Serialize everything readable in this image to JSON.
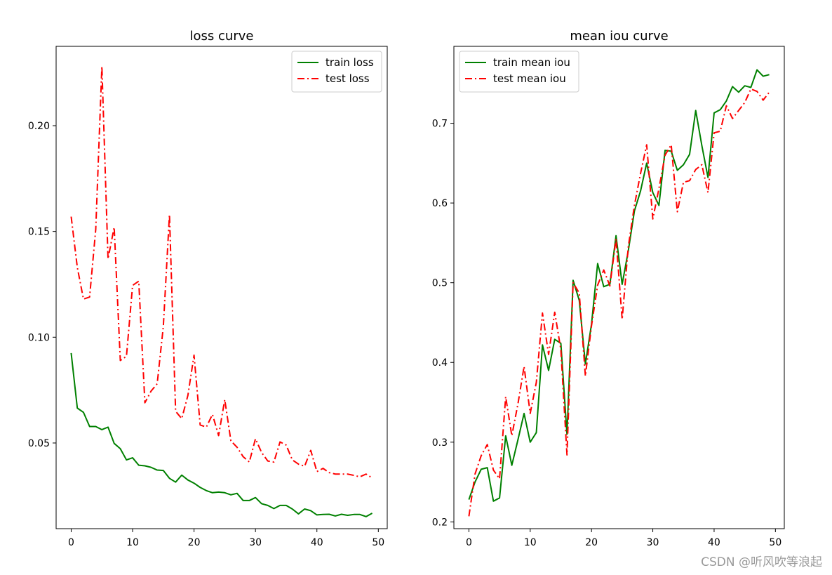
{
  "watermark": "CSDN @听风吹等浪起",
  "colors": {
    "train": "#008000",
    "test": "#ff0000",
    "axis": "#000000"
  },
  "chart_data": [
    {
      "type": "line",
      "title": "loss curve",
      "xlim": [
        -2.45,
        51.45
      ],
      "ylim": [
        0.0095,
        0.2375
      ],
      "xticks": [
        0,
        10,
        20,
        30,
        40,
        50
      ],
      "yticks": [
        0.05,
        0.1,
        0.15,
        0.2
      ],
      "ytick_labels": [
        "0.05",
        "0.10",
        "0.15",
        "0.20"
      ],
      "legend_position": "upper right",
      "grid": false,
      "series": [
        {
          "name": "train loss",
          "style": "solid",
          "color": "#008000",
          "x": [
            0,
            1,
            2,
            3,
            4,
            5,
            6,
            7,
            8,
            9,
            10,
            11,
            12,
            13,
            14,
            15,
            16,
            17,
            18,
            19,
            20,
            21,
            22,
            23,
            24,
            25,
            26,
            27,
            28,
            29,
            30,
            31,
            32,
            33,
            34,
            35,
            36,
            37,
            38,
            39,
            40,
            41,
            42,
            43,
            44,
            45,
            46,
            47,
            48,
            49
          ],
          "values": [
            0.0925,
            0.0665,
            0.0645,
            0.0578,
            0.0578,
            0.0563,
            0.0575,
            0.0498,
            0.0473,
            0.042,
            0.043,
            0.0395,
            0.0392,
            0.0385,
            0.0372,
            0.037,
            0.0333,
            0.0315,
            0.0348,
            0.0325,
            0.031,
            0.029,
            0.0275,
            0.0265,
            0.0268,
            0.0265,
            0.0255,
            0.0262,
            0.0228,
            0.0228,
            0.0242,
            0.0213,
            0.0205,
            0.019,
            0.0205,
            0.0205,
            0.0188,
            0.0165,
            0.0188,
            0.018,
            0.016,
            0.0162,
            0.0163,
            0.0155,
            0.0163,
            0.0158,
            0.0162,
            0.0162,
            0.0152,
            0.0168
          ]
        },
        {
          "name": "test loss",
          "style": "dashdot",
          "color": "#ff0000",
          "x": [
            0,
            1,
            2,
            3,
            4,
            5,
            6,
            7,
            8,
            9,
            10,
            11,
            12,
            13,
            14,
            15,
            16,
            17,
            18,
            19,
            20,
            21,
            22,
            23,
            24,
            25,
            26,
            27,
            28,
            29,
            30,
            31,
            32,
            33,
            34,
            35,
            36,
            37,
            38,
            39,
            40,
            41,
            42,
            43,
            44,
            45,
            46,
            47,
            48,
            49
          ],
          "values": [
            0.157,
            0.133,
            0.118,
            0.119,
            0.151,
            0.228,
            0.137,
            0.152,
            0.089,
            0.091,
            0.1245,
            0.1265,
            0.069,
            0.0745,
            0.078,
            0.105,
            0.158,
            0.065,
            0.0615,
            0.0725,
            0.0915,
            0.0585,
            0.0575,
            0.0635,
            0.0535,
            0.0705,
            0.051,
            0.048,
            0.0435,
            0.041,
            0.052,
            0.0455,
            0.0415,
            0.041,
            0.0505,
            0.049,
            0.042,
            0.04,
            0.039,
            0.0465,
            0.0365,
            0.038,
            0.036,
            0.0353,
            0.0353,
            0.0353,
            0.0347,
            0.034,
            0.0353,
            0.0335
          ]
        }
      ]
    },
    {
      "type": "line",
      "title": "mean iou curve",
      "xlim": [
        -2.45,
        51.45
      ],
      "ylim": [
        0.1915,
        0.7965
      ],
      "xticks": [
        0,
        10,
        20,
        30,
        40,
        50
      ],
      "yticks": [
        0.2,
        0.3,
        0.4,
        0.5,
        0.6,
        0.7
      ],
      "ytick_labels": [
        "0.2",
        "0.3",
        "0.4",
        "0.5",
        "0.6",
        "0.7"
      ],
      "legend_position": "upper left",
      "grid": false,
      "series": [
        {
          "name": "train mean iou",
          "style": "solid",
          "color": "#008000",
          "x": [
            0,
            1,
            2,
            3,
            4,
            5,
            6,
            7,
            8,
            9,
            10,
            11,
            12,
            13,
            14,
            15,
            16,
            17,
            18,
            19,
            20,
            21,
            22,
            23,
            24,
            25,
            26,
            27,
            28,
            29,
            30,
            31,
            32,
            33,
            34,
            35,
            36,
            37,
            38,
            39,
            40,
            41,
            42,
            43,
            44,
            45,
            46,
            47,
            48,
            49
          ],
          "values": [
            0.228,
            0.25,
            0.266,
            0.268,
            0.226,
            0.23,
            0.308,
            0.271,
            0.303,
            0.336,
            0.3,
            0.312,
            0.422,
            0.39,
            0.429,
            0.424,
            0.31,
            0.503,
            0.478,
            0.398,
            0.448,
            0.524,
            0.495,
            0.498,
            0.559,
            0.498,
            0.54,
            0.59,
            0.615,
            0.65,
            0.613,
            0.597,
            0.666,
            0.665,
            0.641,
            0.648,
            0.661,
            0.716,
            0.672,
            0.632,
            0.713,
            0.717,
            0.728,
            0.746,
            0.739,
            0.747,
            0.745,
            0.767,
            0.759,
            0.761
          ]
        },
        {
          "name": "test mean iou",
          "style": "dashdot",
          "color": "#ff0000",
          "x": [
            0,
            1,
            2,
            3,
            4,
            5,
            6,
            7,
            8,
            9,
            10,
            11,
            12,
            13,
            14,
            15,
            16,
            17,
            18,
            19,
            20,
            21,
            22,
            23,
            24,
            25,
            26,
            27,
            28,
            29,
            30,
            31,
            32,
            33,
            34,
            35,
            36,
            37,
            38,
            39,
            40,
            41,
            42,
            43,
            44,
            45,
            46,
            47,
            48,
            49
          ],
          "values": [
            0.207,
            0.26,
            0.283,
            0.297,
            0.265,
            0.254,
            0.357,
            0.308,
            0.348,
            0.395,
            0.336,
            0.375,
            0.462,
            0.41,
            0.463,
            0.416,
            0.284,
            0.5,
            0.487,
            0.383,
            0.446,
            0.497,
            0.516,
            0.496,
            0.555,
            0.454,
            0.545,
            0.597,
            0.637,
            0.673,
            0.58,
            0.618,
            0.66,
            0.673,
            0.589,
            0.626,
            0.628,
            0.642,
            0.648,
            0.613,
            0.688,
            0.69,
            0.722,
            0.706,
            0.716,
            0.726,
            0.743,
            0.74,
            0.729,
            0.739
          ]
        }
      ]
    }
  ]
}
